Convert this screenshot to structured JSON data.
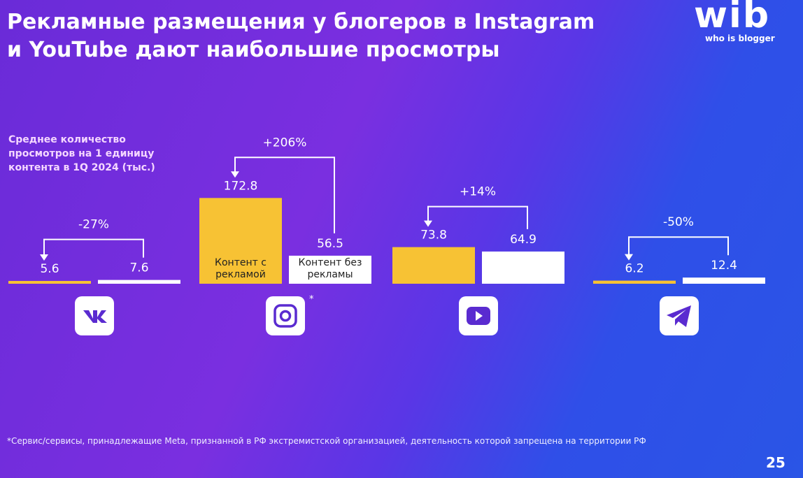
{
  "header": {
    "title_lines": [
      "Рекламные размещения у блогеров в Instagram",
      "и YouTube дают наибольшие просмотры"
    ],
    "logo": "wib",
    "logo_tagline": "who is blogger"
  },
  "chart_data": {
    "type": "bar",
    "subtitle_lines": [
      "Среднее количество",
      "просмотров на 1 единицу",
      "контента в 1Q 2024 (тыс.)"
    ],
    "categories": [
      null,
      null,
      null,
      null
    ],
    "series": [
      {
        "name": "Контент с рекламой",
        "color": "#f7c234",
        "values": [
          5.6,
          172.8,
          73.8,
          6.2
        ]
      },
      {
        "name": "Контент без рекламы",
        "color": "#ffffff",
        "values": [
          7.6,
          56.5,
          64.9,
          12.4
        ]
      }
    ],
    "change_labels": [
      "-27%",
      "+206%",
      "+14%",
      "-50%"
    ],
    "annotation": "*"
  },
  "footer": {
    "footnote": "*Сервис/сервисы, принадлежащие Meta, признанной в РФ экстремистской организацией, деятельность которой запрещена на территории РФ",
    "page_number": "25"
  }
}
